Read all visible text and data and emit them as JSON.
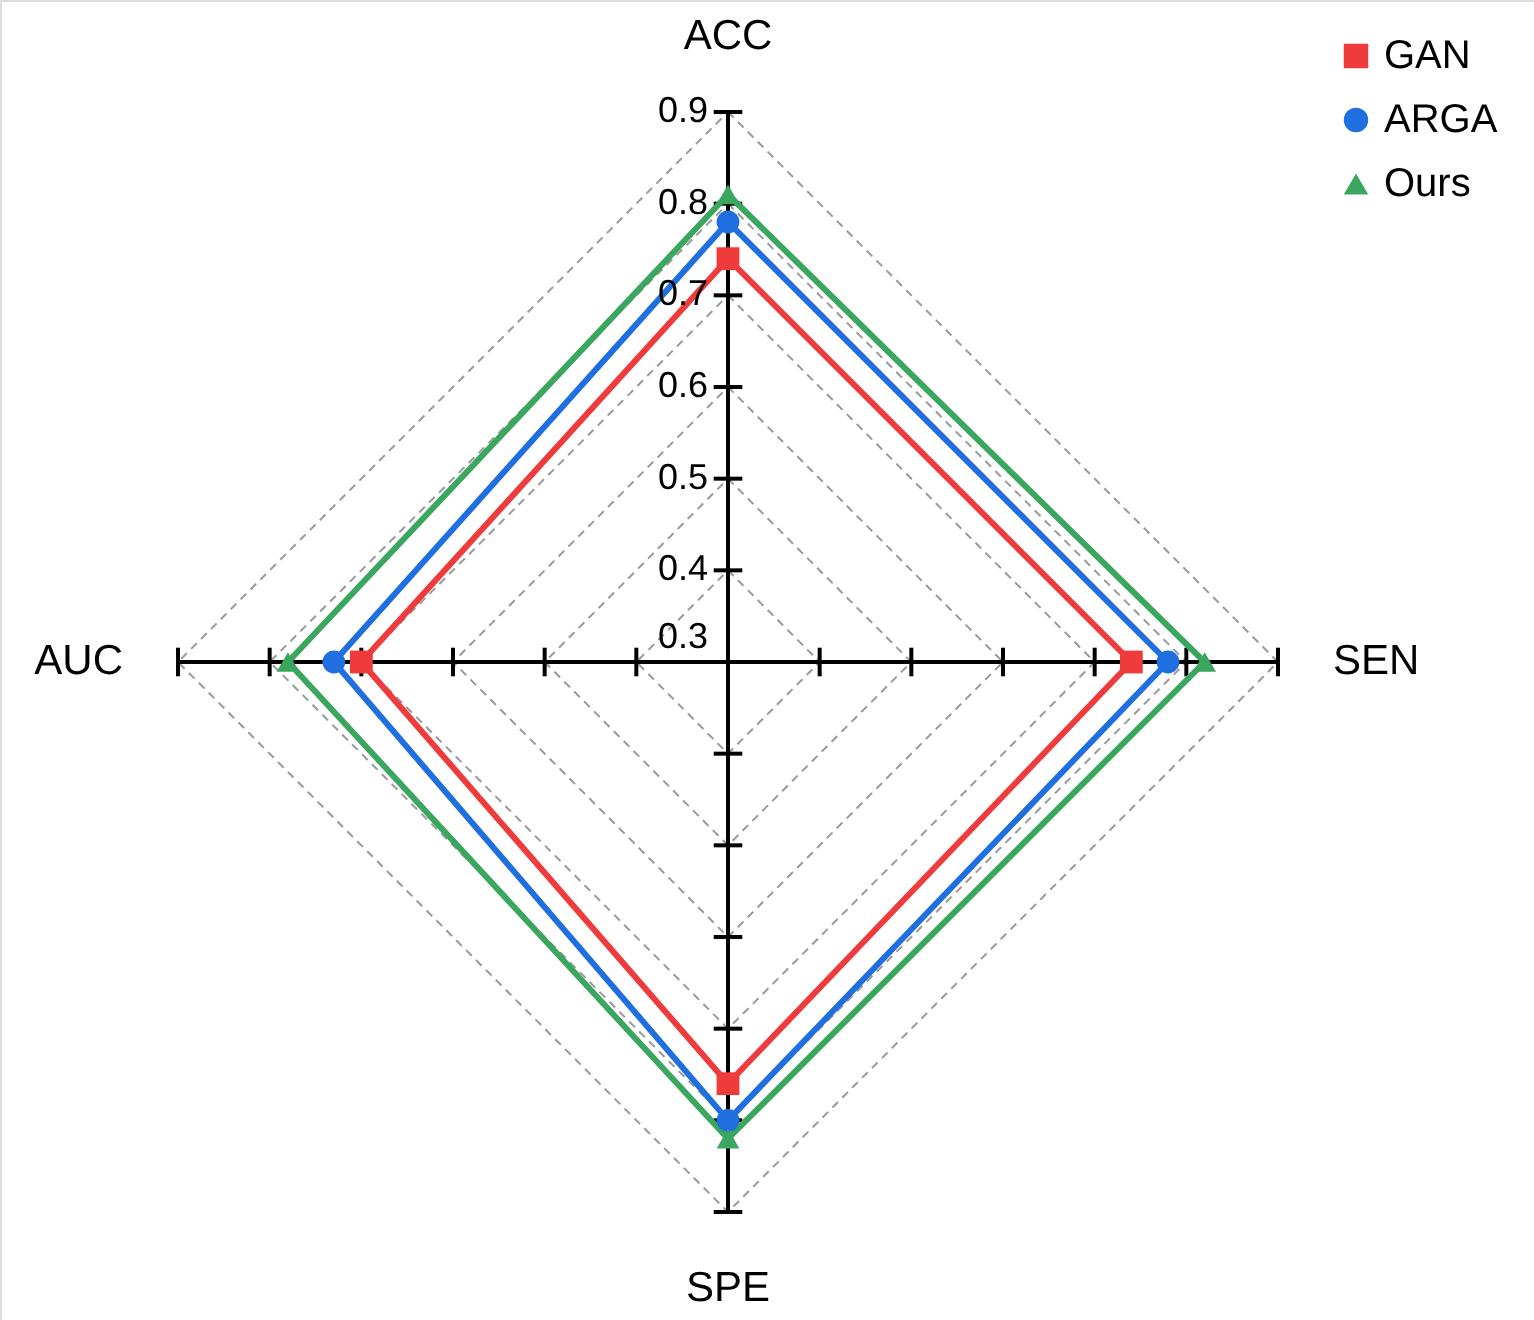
{
  "chart_data": {
    "type": "radar",
    "categories": [
      "ACC",
      "SEN",
      "SPE",
      "AUC"
    ],
    "ylim": [
      0.3,
      0.9
    ],
    "yticks": [
      0.3,
      0.4,
      0.5,
      0.6,
      0.7,
      0.8,
      0.9
    ],
    "grid": true,
    "legend": "top right",
    "line_style": "solid",
    "series": [
      {
        "name": "GAN",
        "color": "#ef3b3b",
        "marker": "square",
        "values": [
          0.74,
          0.74,
          0.76,
          0.7
        ]
      },
      {
        "name": "ARGA",
        "color": "#1f6fe0",
        "marker": "circle",
        "values": [
          0.78,
          0.78,
          0.8,
          0.73
        ]
      },
      {
        "name": "Ours",
        "color": "#3aa65e",
        "marker": "triangle",
        "values": [
          0.81,
          0.82,
          0.82,
          0.78
        ]
      }
    ]
  }
}
